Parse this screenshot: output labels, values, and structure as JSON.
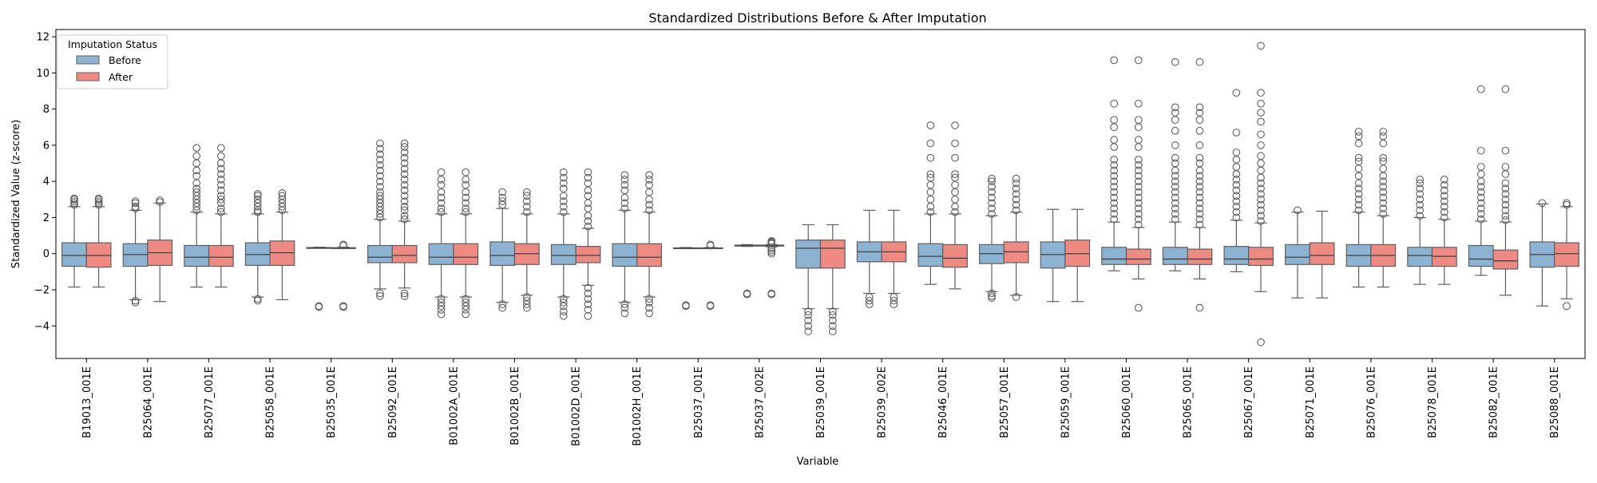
{
  "chart_data": {
    "type": "box",
    "title": "Standardized Distributions Before & After Imputation",
    "xlabel": "Variable",
    "ylabel": "Standardized Value (z-score)",
    "ylim": [
      -5.8,
      12.4
    ],
    "yticks": [
      -4,
      -2,
      0,
      2,
      4,
      6,
      8,
      10,
      12
    ],
    "grid": false,
    "legend": {
      "title": "Imputation Status",
      "placement": "top-left",
      "entries": [
        {
          "label": "Before",
          "color": "#8db3d2"
        },
        {
          "label": "After",
          "color": "#ef8a83"
        }
      ]
    },
    "colors": {
      "before": "#8db3d2",
      "after": "#ef8a83",
      "line": "#5f5f5f",
      "median": "#4a4a4a"
    },
    "categories": [
      "B19013_001E",
      "B25064_001E",
      "B25077_001E",
      "B25058_001E",
      "B25035_001E",
      "B25092_001E",
      "B01002A_001E",
      "B01002B_001E",
      "B01002D_001E",
      "B01002H_001E",
      "B25037_001E",
      "B25037_002E",
      "B25039_001E",
      "B25039_002E",
      "B25046_001E",
      "B25057_001E",
      "B25059_001E",
      "B25060_001E",
      "B25065_001E",
      "B25067_001E",
      "B25071_001E",
      "B25076_001E",
      "B25078_001E",
      "B25082_001E",
      "B25088_001E"
    ],
    "series": [
      {
        "name": "Before",
        "boxes": [
          {
            "whislo": -1.85,
            "q1": -0.7,
            "med": -0.1,
            "q3": 0.6,
            "whishi": 2.6,
            "fliers": [
              2.7,
              2.8,
              2.9,
              3.0,
              3.05
            ]
          },
          {
            "whislo": -2.55,
            "q1": -0.7,
            "med": -0.05,
            "q3": 0.55,
            "whishi": 2.4,
            "fliers": [
              -2.6,
              -2.7,
              2.5,
              2.6,
              2.8,
              2.9
            ]
          },
          {
            "whislo": -1.85,
            "q1": -0.7,
            "med": -0.2,
            "q3": 0.45,
            "whishi": 2.3,
            "fliers": [
              2.4,
              2.6,
              2.8,
              3.0,
              3.2,
              3.4,
              3.6,
              3.9,
              4.3,
              4.6,
              5.0,
              5.4,
              5.85
            ]
          },
          {
            "whislo": -2.4,
            "q1": -0.65,
            "med": -0.05,
            "q3": 0.6,
            "whishi": 2.2,
            "fliers": [
              -2.5,
              -2.6,
              2.3,
              2.4,
              2.6,
              2.8,
              3.0,
              3.2,
              3.3
            ]
          },
          {
            "whislo": 0.3,
            "q1": 0.3,
            "med": 0.3,
            "q3": 0.34,
            "whishi": 0.36,
            "fliers": [
              -2.95,
              -2.9
            ]
          },
          {
            "whislo": -1.95,
            "q1": -0.5,
            "med": -0.2,
            "q3": 0.45,
            "whishi": 1.9,
            "fliers": [
              -2.2,
              -2.35,
              2.0,
              2.2,
              2.4,
              2.6,
              2.8,
              3.0,
              3.2,
              3.4,
              3.7,
              4.0,
              4.3,
              4.6,
              4.9,
              5.2,
              5.5,
              5.8,
              6.1
            ]
          },
          {
            "whislo": -2.4,
            "q1": -0.6,
            "med": -0.2,
            "q3": 0.55,
            "whishi": 2.2,
            "fliers": [
              -2.5,
              -2.7,
              -2.9,
              -3.1,
              -3.35,
              2.3,
              2.5,
              2.8,
              3.1,
              3.4,
              3.8,
              4.1,
              4.5
            ]
          },
          {
            "whislo": -2.7,
            "q1": -0.65,
            "med": -0.1,
            "q3": 0.65,
            "whishi": 2.5,
            "fliers": [
              -2.8,
              -3.0,
              2.7,
              2.9,
              3.1,
              3.4
            ]
          },
          {
            "whislo": -2.4,
            "q1": -0.6,
            "med": -0.1,
            "q3": 0.5,
            "whishi": 2.2,
            "fliers": [
              -2.5,
              -2.7,
              -2.9,
              -3.2,
              -3.45,
              2.3,
              2.6,
              2.9,
              3.2,
              3.6,
              3.9,
              4.2,
              4.5
            ]
          },
          {
            "whislo": -2.7,
            "q1": -0.7,
            "med": -0.2,
            "q3": 0.55,
            "whishi": 2.4,
            "fliers": [
              -2.8,
              -3.0,
              -3.3,
              2.5,
              2.8,
              3.1,
              3.5,
              3.8,
              4.1,
              4.35
            ]
          },
          {
            "whislo": 0.28,
            "q1": 0.3,
            "med": 0.3,
            "q3": 0.32,
            "whishi": 0.34,
            "fliers": [
              -2.9,
              -2.85
            ]
          },
          {
            "whislo": 0.4,
            "q1": 0.42,
            "med": 0.45,
            "q3": 0.47,
            "whishi": 0.5,
            "fliers": [
              -2.2,
              -2.25
            ]
          },
          {
            "whislo": -3.05,
            "q1": -0.8,
            "med": 0.3,
            "q3": 0.75,
            "whishi": 1.6,
            "fliers": [
              -3.2,
              -3.4,
              -3.7,
              -4.0,
              -4.3
            ]
          },
          {
            "whislo": -2.2,
            "q1": -0.45,
            "med": 0.1,
            "q3": 0.65,
            "whishi": 2.4,
            "fliers": [
              -2.4,
              -2.6,
              -2.8
            ]
          },
          {
            "whislo": -1.7,
            "q1": -0.7,
            "med": -0.15,
            "q3": 0.55,
            "whishi": 2.2,
            "fliers": [
              2.3,
              2.6,
              3.0,
              3.4,
              3.8,
              4.2,
              4.4,
              5.3,
              6.1,
              7.1
            ]
          },
          {
            "whislo": -2.1,
            "q1": -0.55,
            "med": 0.0,
            "q3": 0.5,
            "whishi": 2.1,
            "fliers": [
              -2.2,
              -2.35,
              -2.45,
              2.2,
              2.5,
              2.8,
              3.1,
              3.4,
              3.7,
              4.0,
              4.15
            ]
          },
          {
            "whislo": -2.65,
            "q1": -0.8,
            "med": -0.05,
            "q3": 0.65,
            "whishi": 2.45,
            "fliers": []
          },
          {
            "whislo": -0.95,
            "q1": -0.6,
            "med": -0.3,
            "q3": 0.35,
            "whishi": 1.75,
            "fliers": [
              1.9,
              2.2,
              2.5,
              2.8,
              3.1,
              3.4,
              3.7,
              4.0,
              4.3,
              4.6,
              4.9,
              5.2,
              5.9,
              6.3,
              7.0,
              7.4,
              8.3,
              10.7
            ]
          },
          {
            "whislo": -0.95,
            "q1": -0.6,
            "med": -0.3,
            "q3": 0.35,
            "whishi": 1.75,
            "fliers": [
              1.9,
              2.2,
              2.5,
              2.8,
              3.1,
              3.4,
              3.7,
              4.0,
              4.3,
              4.6,
              5.0,
              5.3,
              6.0,
              6.8,
              7.4,
              7.8,
              8.1,
              10.6
            ]
          },
          {
            "whislo": -1.0,
            "q1": -0.6,
            "med": -0.3,
            "q3": 0.4,
            "whishi": 1.85,
            "fliers": [
              2.0,
              2.3,
              2.6,
              2.9,
              3.2,
              3.5,
              3.8,
              4.1,
              4.4,
              4.8,
              5.2,
              5.6,
              6.7,
              8.9
            ]
          },
          {
            "whislo": -2.45,
            "q1": -0.6,
            "med": -0.2,
            "q3": 0.5,
            "whishi": 2.3,
            "fliers": [
              2.4
            ]
          },
          {
            "whislo": -1.85,
            "q1": -0.7,
            "med": -0.1,
            "q3": 0.5,
            "whishi": 2.3,
            "fliers": [
              2.4,
              2.7,
              3.0,
              3.3,
              3.6,
              3.9,
              4.3,
              4.7,
              5.1,
              5.3,
              6.1,
              6.5,
              6.75
            ]
          },
          {
            "whislo": -1.7,
            "q1": -0.7,
            "med": -0.1,
            "q3": 0.35,
            "whishi": 2.0,
            "fliers": [
              2.1,
              2.4,
              2.7,
              3.0,
              3.3,
              3.6,
              3.9,
              4.1
            ]
          },
          {
            "whislo": -1.2,
            "q1": -0.7,
            "med": -0.3,
            "q3": 0.45,
            "whishi": 1.8,
            "fliers": [
              1.9,
              2.2,
              2.5,
              2.8,
              3.1,
              3.4,
              3.7,
              4.0,
              4.4,
              4.8,
              5.7,
              9.1
            ]
          },
          {
            "whislo": -2.9,
            "q1": -0.75,
            "med": -0.05,
            "q3": 0.65,
            "whishi": 2.75,
            "fliers": [
              2.8
            ]
          }
        ]
      },
      {
        "name": "After",
        "boxes": [
          {
            "whislo": -1.85,
            "q1": -0.75,
            "med": -0.1,
            "q3": 0.6,
            "whishi": 2.6,
            "fliers": [
              2.7,
              2.8,
              2.9,
              3.0,
              3.05
            ]
          },
          {
            "whislo": -2.65,
            "q1": -0.65,
            "med": 0.05,
            "q3": 0.75,
            "whishi": 2.8,
            "fliers": [
              2.85,
              2.95
            ]
          },
          {
            "whislo": -1.85,
            "q1": -0.7,
            "med": -0.2,
            "q3": 0.45,
            "whishi": 2.2,
            "fliers": [
              2.3,
              2.5,
              2.8,
              3.0,
              3.2,
              3.5,
              3.8,
              4.1,
              4.4,
              4.7,
              5.0,
              5.4,
              5.85
            ]
          },
          {
            "whislo": -2.55,
            "q1": -0.65,
            "med": 0.05,
            "q3": 0.7,
            "whishi": 2.3,
            "fliers": [
              2.4,
              2.6,
              2.8,
              3.0,
              3.2,
              3.35
            ]
          },
          {
            "whislo": 0.28,
            "q1": 0.3,
            "med": 0.3,
            "q3": 0.33,
            "whishi": 0.36,
            "fliers": [
              -2.95,
              -2.9,
              0.45,
              0.5
            ]
          },
          {
            "whislo": -1.9,
            "q1": -0.5,
            "med": -0.1,
            "q3": 0.45,
            "whishi": 1.8,
            "fliers": [
              -2.2,
              -2.35,
              1.9,
              2.1,
              2.4,
              2.6,
              2.9,
              3.2,
              3.5,
              3.8,
              4.1,
              4.4,
              4.7,
              5.0,
              5.3,
              5.6,
              5.9,
              6.1
            ]
          },
          {
            "whislo": -2.4,
            "q1": -0.6,
            "med": -0.2,
            "q3": 0.55,
            "whishi": 2.2,
            "fliers": [
              -2.5,
              -2.7,
              -2.9,
              -3.1,
              -3.35,
              2.3,
              2.5,
              2.8,
              3.1,
              3.4,
              3.8,
              4.1,
              4.5
            ]
          },
          {
            "whislo": -2.3,
            "q1": -0.6,
            "med": 0.0,
            "q3": 0.55,
            "whishi": 2.2,
            "fliers": [
              -2.4,
              -2.6,
              -2.8,
              -3.0,
              2.3,
              2.6,
              2.9,
              3.2,
              3.4
            ]
          },
          {
            "whislo": -1.75,
            "q1": -0.5,
            "med": -0.1,
            "q3": 0.4,
            "whishi": 1.4,
            "fliers": [
              -1.9,
              -2.2,
              -2.5,
              -2.8,
              -3.1,
              -3.45,
              1.5,
              1.8,
              2.1,
              2.5,
              2.8,
              3.2,
              3.5,
              3.9,
              4.2,
              4.5
            ]
          },
          {
            "whislo": -2.4,
            "q1": -0.7,
            "med": -0.2,
            "q3": 0.55,
            "whishi": 2.3,
            "fliers": [
              -2.5,
              -2.7,
              -3.0,
              -3.3,
              2.4,
              2.7,
              3.0,
              3.4,
              3.8,
              4.1,
              4.35
            ]
          },
          {
            "whislo": 0.28,
            "q1": 0.3,
            "med": 0.3,
            "q3": 0.32,
            "whishi": 0.34,
            "fliers": [
              -2.9,
              -2.85,
              0.45,
              0.5
            ]
          },
          {
            "whislo": 0.38,
            "q1": 0.42,
            "med": 0.45,
            "q3": 0.47,
            "whishi": 0.5,
            "fliers": [
              -2.2,
              -2.25,
              0.0,
              0.1,
              0.2,
              0.3,
              0.55,
              0.6,
              0.65,
              0.7
            ]
          },
          {
            "whislo": -3.05,
            "q1": -0.8,
            "med": 0.3,
            "q3": 0.75,
            "whishi": 1.6,
            "fliers": [
              -3.2,
              -3.4,
              -3.7,
              -4.0,
              -4.3
            ]
          },
          {
            "whislo": -2.2,
            "q1": -0.45,
            "med": 0.1,
            "q3": 0.65,
            "whishi": 2.4,
            "fliers": [
              -2.4,
              -2.6,
              -2.8
            ]
          },
          {
            "whislo": -1.95,
            "q1": -0.75,
            "med": -0.25,
            "q3": 0.5,
            "whishi": 2.2,
            "fliers": [
              2.3,
              2.6,
              3.0,
              3.4,
              3.8,
              4.2,
              4.4,
              5.3,
              6.1,
              7.1
            ]
          },
          {
            "whislo": -2.3,
            "q1": -0.5,
            "med": 0.1,
            "q3": 0.65,
            "whishi": 2.3,
            "fliers": [
              -2.4,
              2.4,
              2.7,
              3.0,
              3.3,
              3.6,
              3.9,
              4.15
            ]
          },
          {
            "whislo": -2.65,
            "q1": -0.7,
            "med": 0.0,
            "q3": 0.75,
            "whishi": 2.45,
            "fliers": []
          },
          {
            "whislo": -1.4,
            "q1": -0.6,
            "med": -0.3,
            "q3": 0.25,
            "whishi": 1.45,
            "fliers": [
              -3.0,
              1.6,
              1.9,
              2.2,
              2.5,
              2.8,
              3.1,
              3.4,
              3.7,
              4.0,
              4.3,
              4.6,
              4.9,
              5.2,
              5.9,
              6.3,
              7.0,
              7.4,
              8.3,
              10.7
            ]
          },
          {
            "whislo": -1.4,
            "q1": -0.6,
            "med": -0.3,
            "q3": 0.25,
            "whishi": 1.45,
            "fliers": [
              -3.0,
              1.6,
              1.9,
              2.2,
              2.5,
              2.8,
              3.1,
              3.4,
              3.7,
              4.0,
              4.3,
              4.6,
              5.0,
              5.3,
              6.0,
              6.8,
              7.4,
              7.8,
              8.1,
              10.6
            ]
          },
          {
            "whislo": -2.1,
            "q1": -0.65,
            "med": -0.3,
            "q3": 0.35,
            "whishi": 1.7,
            "fliers": [
              -4.9,
              1.8,
              2.1,
              2.4,
              2.7,
              3.0,
              3.3,
              3.6,
              3.9,
              4.2,
              4.6,
              5.0,
              5.4,
              6.0,
              6.6,
              7.3,
              7.8,
              8.3,
              8.9,
              11.5
            ]
          },
          {
            "whislo": -2.45,
            "q1": -0.6,
            "med": -0.1,
            "q3": 0.6,
            "whishi": 2.35,
            "fliers": []
          },
          {
            "whislo": -1.85,
            "q1": -0.7,
            "med": -0.1,
            "q3": 0.5,
            "whishi": 2.1,
            "fliers": [
              2.2,
              2.5,
              2.8,
              3.1,
              3.4,
              3.7,
              4.0,
              4.3,
              4.7,
              5.1,
              5.3,
              6.1,
              6.5,
              6.75
            ]
          },
          {
            "whislo": -1.7,
            "q1": -0.7,
            "med": -0.15,
            "q3": 0.35,
            "whishi": 1.9,
            "fliers": [
              2.0,
              2.3,
              2.6,
              2.9,
              3.2,
              3.5,
              3.8,
              4.1
            ]
          },
          {
            "whislo": -2.3,
            "q1": -0.85,
            "med": -0.4,
            "q3": 0.2,
            "whishi": 1.75,
            "fliers": [
              1.85,
              2.1,
              2.4,
              2.7,
              3.0,
              3.3,
              3.6,
              3.9,
              4.4,
              4.8,
              5.7,
              9.1
            ]
          },
          {
            "whislo": -2.5,
            "q1": -0.7,
            "med": 0.0,
            "q3": 0.6,
            "whishi": 2.6,
            "fliers": [
              -2.9,
              2.7,
              2.8
            ]
          }
        ]
      }
    ]
  }
}
